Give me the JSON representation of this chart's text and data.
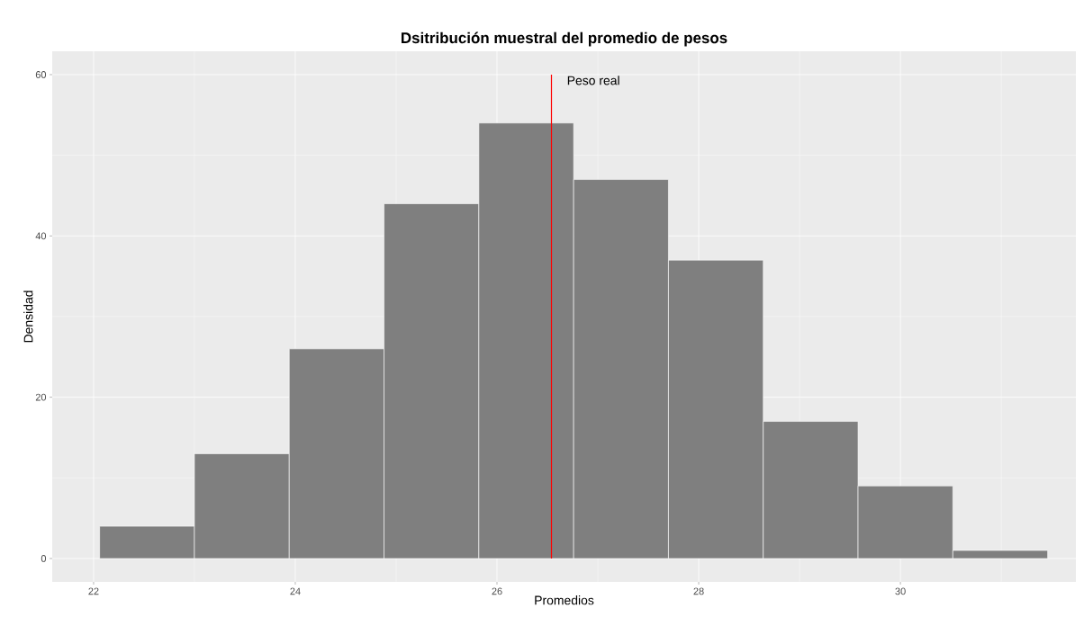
{
  "chart_data": {
    "type": "histogram",
    "title": "Dsitribución muestral del promedio de pesos",
    "xlabel": "Promedios",
    "ylabel": "Densidad",
    "bins": [
      22.06,
      23.0,
      23.94,
      24.88,
      25.82,
      26.76,
      27.7,
      28.64,
      29.58,
      30.52,
      31.46
    ],
    "values": [
      4,
      13,
      26,
      44,
      54,
      47,
      37,
      17,
      9,
      1
    ],
    "color": "#7f7f7f",
    "xlim": [
      21.59,
      31.74
    ],
    "ylim": [
      -2.9,
      62.9
    ],
    "xticks": [
      22,
      24,
      26,
      28,
      30
    ],
    "yticks": [
      0,
      20,
      40,
      60
    ],
    "grid": true,
    "ref_lines": [
      {
        "axis": "x",
        "value": 26.54,
        "label": "Peso real",
        "color": "#ff0000"
      }
    ]
  }
}
